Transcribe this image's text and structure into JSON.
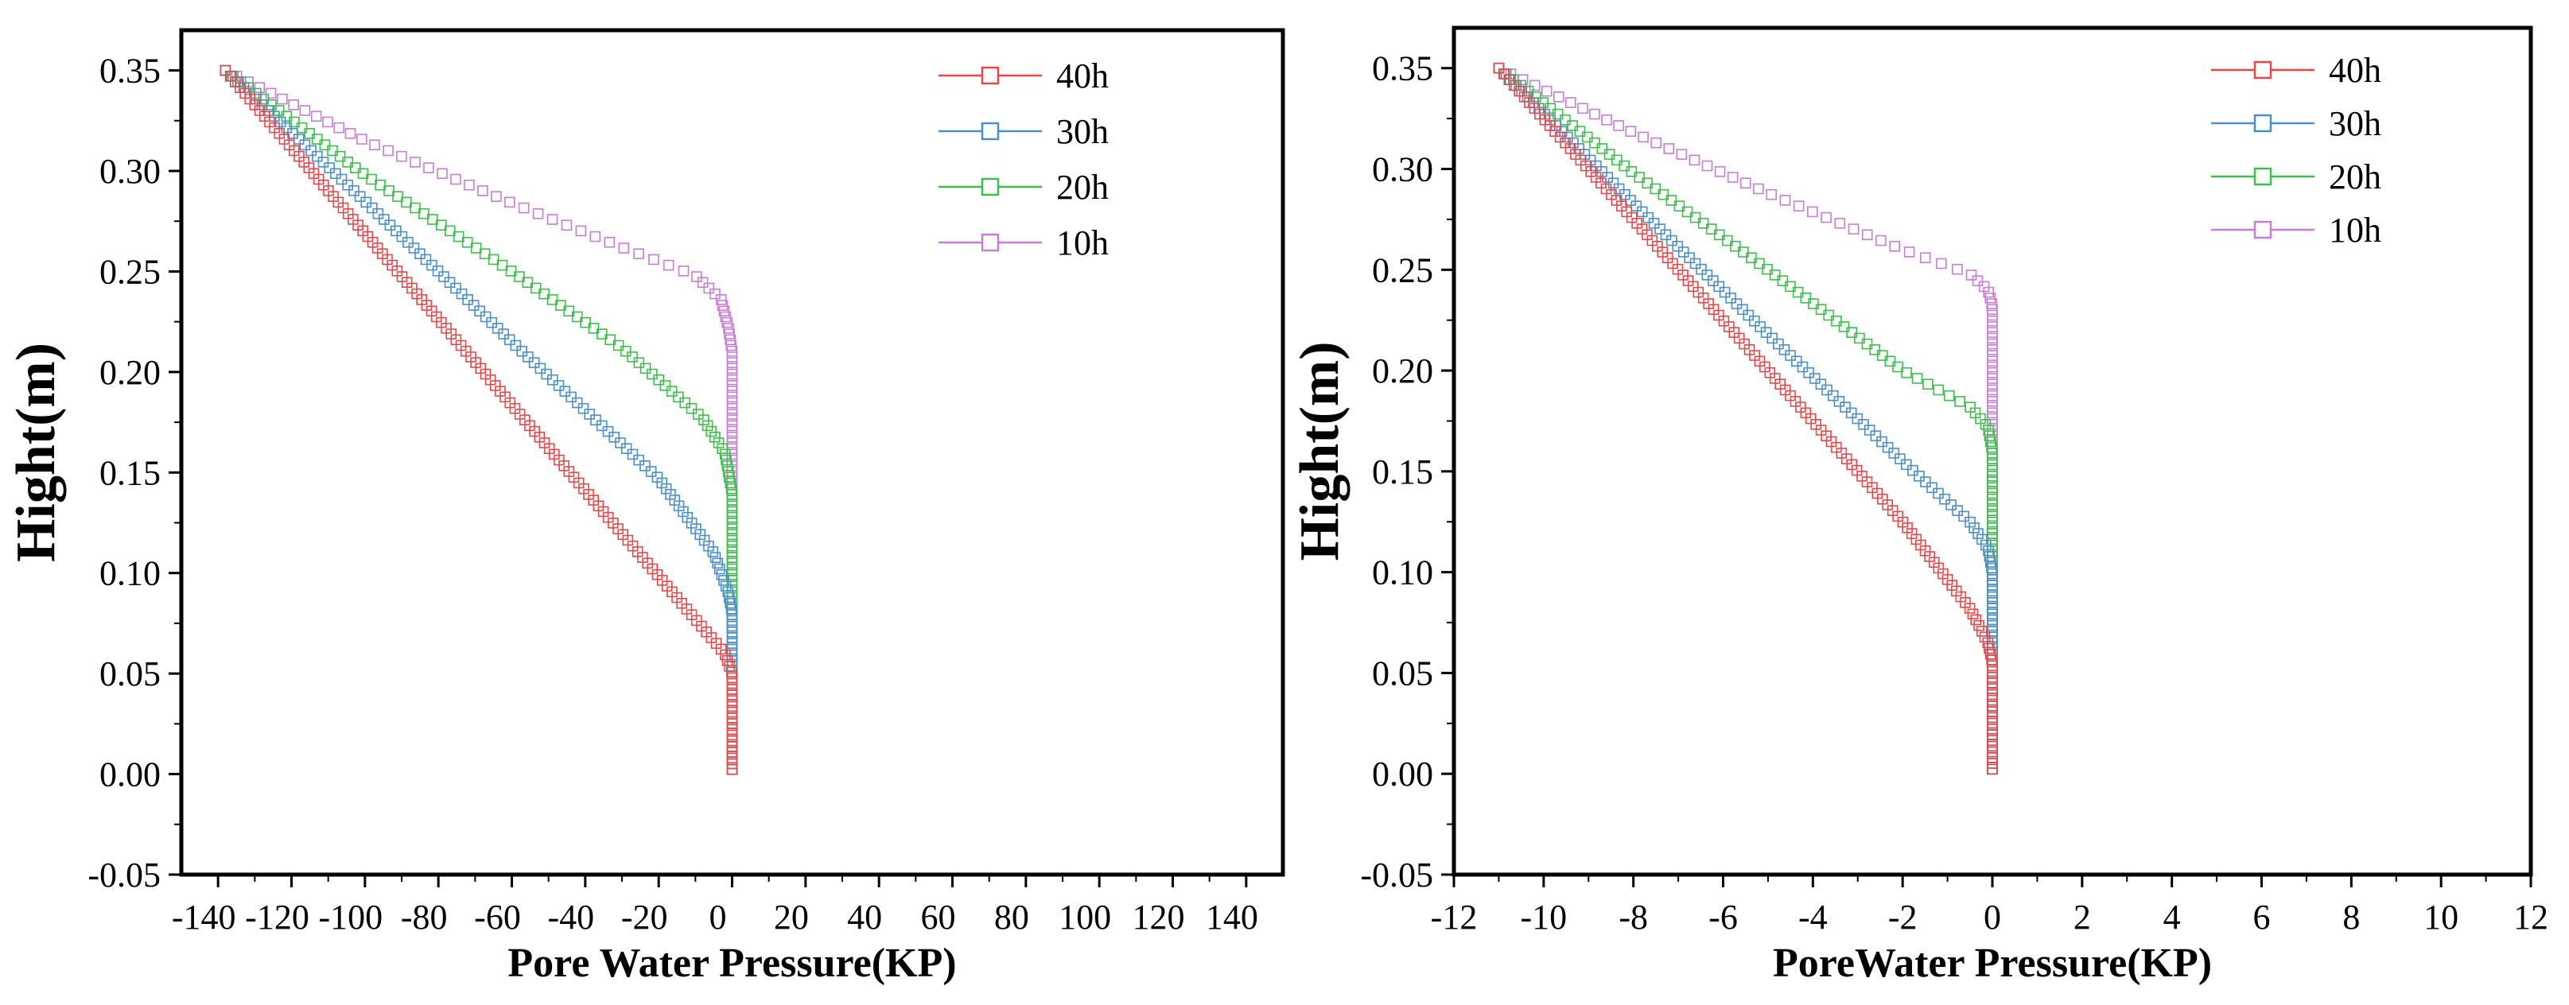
{
  "chart_data": [
    {
      "type": "scatter",
      "title": "",
      "xlabel": "Pore Water Pressure(KP)",
      "ylabel": "Hight(m)",
      "xlim": [
        -150,
        150
      ],
      "ylim": [
        -0.05,
        0.37
      ],
      "xticks": [
        -140,
        -120,
        -100,
        -80,
        -60,
        -40,
        -20,
        0,
        20,
        40,
        60,
        80,
        100,
        120,
        140
      ],
      "xtick_labels": [
        "-140",
        "-120",
        "-100",
        "-80",
        "-60",
        "-40",
        "-20",
        "0",
        "20",
        "40",
        "60",
        "80",
        "100",
        "120",
        "140"
      ],
      "yticks": [
        -0.05,
        0.0,
        0.05,
        0.1,
        0.15,
        0.2,
        0.25,
        0.3,
        0.35
      ],
      "ytick_labels": [
        "-0.05",
        "0.00",
        "0.05",
        "0.10",
        "0.15",
        "0.20",
        "0.25",
        "0.30",
        "0.35"
      ],
      "grid": false,
      "legend_position": "top-right",
      "series": [
        {
          "name": "40h",
          "color": "#e8474a",
          "marker": "square-open",
          "points": [
            [
              -138,
              0.35
            ],
            [
              -2,
              0.06
            ],
            [
              0,
              0.05
            ],
            [
              0,
              0.0
            ]
          ]
        },
        {
          "name": "30h",
          "color": "#4a8fc7",
          "marker": "square-open",
          "points": [
            [
              -138,
              0.35
            ],
            [
              -100,
              0.285
            ],
            [
              -60,
              0.215
            ],
            [
              -20,
              0.147
            ],
            [
              -5,
              0.11
            ],
            [
              -1,
              0.09
            ],
            [
              0,
              0.08
            ],
            [
              0,
              0.0
            ]
          ]
        },
        {
          "name": "20h",
          "color": "#3cbf4a",
          "marker": "square-open",
          "points": [
            [
              -138,
              0.35
            ],
            [
              -100,
              0.298
            ],
            [
              -60,
              0.25
            ],
            [
              -30,
              0.212
            ],
            [
              -8,
              0.177
            ],
            [
              -2,
              0.16
            ],
            [
              0,
              0.14
            ],
            [
              0,
              0.0
            ]
          ]
        },
        {
          "name": "10h",
          "color": "#c77dd4",
          "marker": "square-open",
          "points": [
            [
              -138,
              0.35
            ],
            [
              -100,
              0.315
            ],
            [
              -60,
              0.284
            ],
            [
              -30,
              0.262
            ],
            [
              -10,
              0.248
            ],
            [
              -3,
              0.236
            ],
            [
              -1,
              0.222
            ],
            [
              0,
              0.21
            ],
            [
              0,
              0.0
            ]
          ]
        }
      ]
    },
    {
      "type": "scatter",
      "title": "",
      "xlabel": "PoreWater Pressure(KP)",
      "ylabel": "Hight(m)",
      "xlim": [
        -12,
        12
      ],
      "ylim": [
        -0.05,
        0.37
      ],
      "xticks": [
        -12,
        -10,
        -8,
        -6,
        -4,
        -2,
        0,
        2,
        4,
        6,
        8,
        10,
        12
      ],
      "xtick_labels": [
        "-12",
        "-10",
        "-8",
        "-6",
        "-4",
        "-2",
        "0",
        "2",
        "4",
        "6",
        "8",
        "10",
        "12"
      ],
      "yticks": [
        -0.05,
        0.0,
        0.05,
        0.1,
        0.15,
        0.2,
        0.25,
        0.3,
        0.35
      ],
      "ytick_labels": [
        "-0.05",
        "0.00",
        "0.05",
        "0.10",
        "0.15",
        "0.20",
        "0.25",
        "0.30",
        "0.35"
      ],
      "grid": false,
      "legend_position": "top-right",
      "series": [
        {
          "name": "40h",
          "color": "#e8474a",
          "marker": "square-open",
          "points": [
            [
              -11,
              0.35
            ],
            [
              -5,
              0.2
            ],
            [
              -2,
              0.125
            ],
            [
              -0.5,
              0.082
            ],
            [
              -0.1,
              0.065
            ],
            [
              0,
              0.055
            ],
            [
              0,
              0.0
            ]
          ]
        },
        {
          "name": "30h",
          "color": "#4a8fc7",
          "marker": "square-open",
          "points": [
            [
              -11,
              0.35
            ],
            [
              -8,
              0.283
            ],
            [
              -5,
              0.218
            ],
            [
              -2,
              0.155
            ],
            [
              -0.5,
              0.125
            ],
            [
              -0.1,
              0.112
            ],
            [
              0,
              0.1
            ],
            [
              0,
              0.0
            ]
          ]
        },
        {
          "name": "20h",
          "color": "#3cbf4a",
          "marker": "square-open",
          "points": [
            [
              -11,
              0.35
            ],
            [
              -8,
              0.298
            ],
            [
              -5,
              0.25
            ],
            [
              -2,
              0.2
            ],
            [
              -0.5,
              0.182
            ],
            [
              -0.1,
              0.172
            ],
            [
              0,
              0.16
            ],
            [
              0,
              0.0
            ]
          ]
        },
        {
          "name": "10h",
          "color": "#c77dd4",
          "marker": "square-open",
          "points": [
            [
              -11,
              0.35
            ],
            [
              -8,
              0.318
            ],
            [
              -5,
              0.288
            ],
            [
              -2,
              0.26
            ],
            [
              -0.5,
              0.248
            ],
            [
              -0.1,
              0.24
            ],
            [
              0,
              0.232
            ],
            [
              0,
              0.0
            ]
          ]
        }
      ]
    }
  ]
}
